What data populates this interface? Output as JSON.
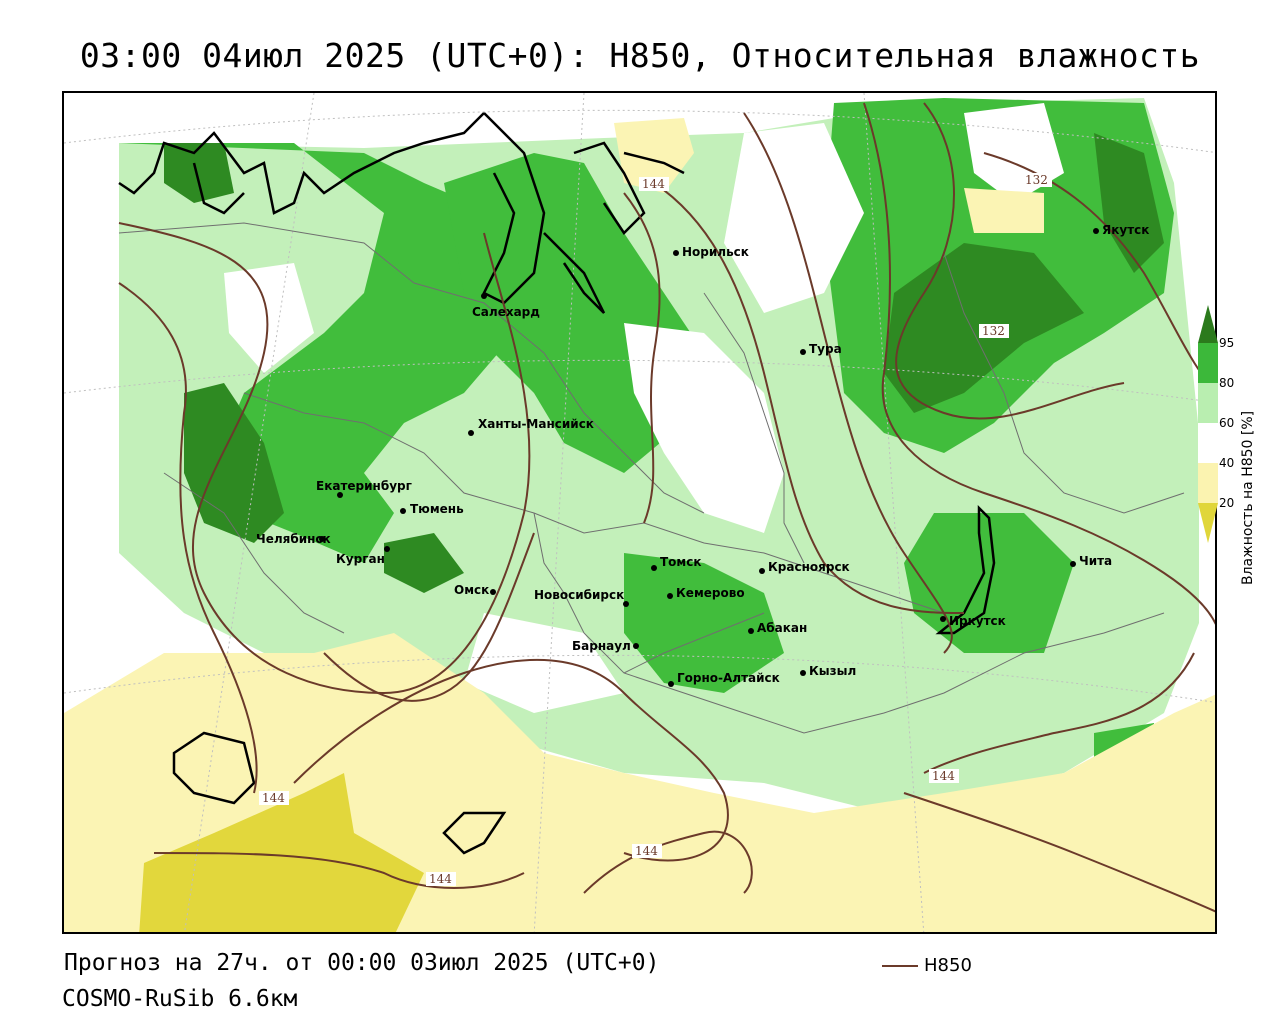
{
  "title": "03:00 04июл 2025 (UTC+0): H850, Относительная влажность",
  "footer": {
    "forecast": "Прогноз на 27ч. от 00:00 03июл 2025 (UTC+0)",
    "model": "COSMO-RuSib 6.6км",
    "contour_key": "H850"
  },
  "legend": {
    "title": "Влажность на H850 [%]",
    "ticks": [
      "95",
      "80",
      "60",
      "40",
      "20"
    ],
    "colors": {
      "gt95": "#2b7a1c",
      "80_95": "#3cb83a",
      "60_80": "#b9eeb0",
      "40_60": "#ffffff",
      "20_40": "#fbf3b0",
      "lt20": "#e0d63a"
    }
  },
  "contours": {
    "color": "#6b3a2a",
    "labels": [
      "144",
      "132",
      "132",
      "144",
      "144",
      "144",
      "144"
    ]
  },
  "cities": [
    "Норильск",
    "Якутск",
    "Салехард",
    "Тура",
    "Ханты-Мансийск",
    "Екатеринбург",
    "Тюмень",
    "Челябинск",
    "Курган",
    "Омск",
    "Новосибирск",
    "Томск",
    "Кемерово",
    "Красноярск",
    "Барнаул",
    "Абакан",
    "Горно-Алтайск",
    "Кызыл",
    "Иркутск",
    "Чита"
  ]
}
